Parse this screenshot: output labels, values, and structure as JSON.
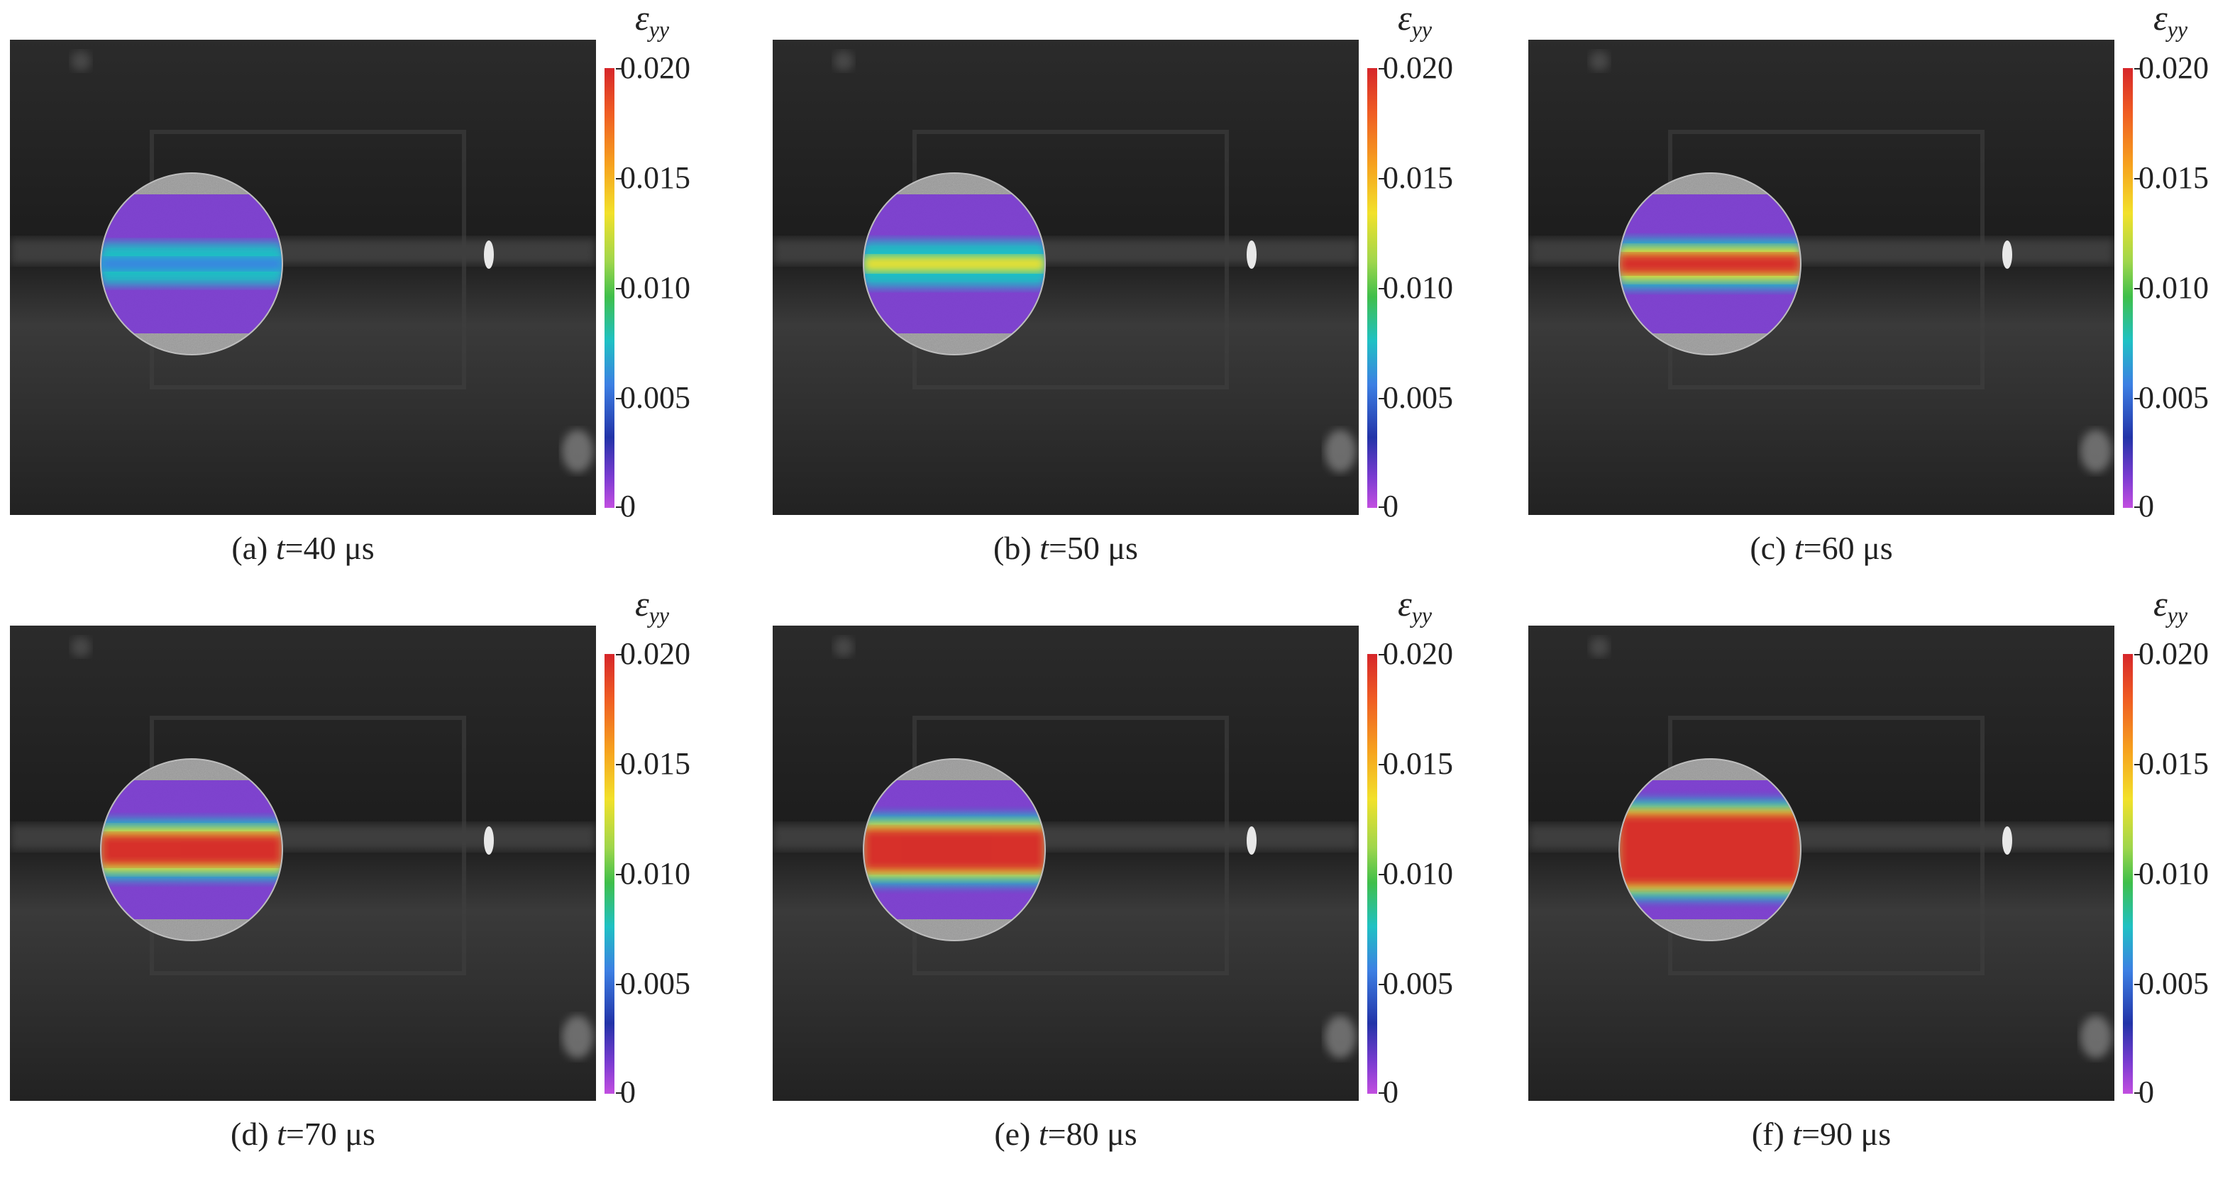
{
  "colorbar": {
    "symbol": "ε",
    "subscript": "yy",
    "ticks": [
      "0.020",
      "0.015",
      "0.010",
      "0.005",
      "0"
    ],
    "colors": [
      "#d6262a",
      "#f2e12a",
      "#3fbf4a",
      "#1fc1c4",
      "#3c7fe3",
      "#7b3bd1"
    ]
  },
  "panels": [
    {
      "label": "(a) ",
      "t_symbol": "t",
      "value": "=40 μs",
      "band_level": 0.35,
      "band_width": 0.1
    },
    {
      "label": "(b) ",
      "t_symbol": "t",
      "value": "=50 μs",
      "band_level": 0.8,
      "band_width": 0.12
    },
    {
      "label": "(c) ",
      "t_symbol": "t",
      "value": "=60 μs",
      "band_level": 0.95,
      "band_width": 0.14
    },
    {
      "label": "(d) ",
      "t_symbol": "t",
      "value": "=70 μs",
      "band_level": 1.0,
      "band_width": 0.2
    },
    {
      "label": "(e) ",
      "t_symbol": "t",
      "value": "=80 μs",
      "band_level": 1.0,
      "band_width": 0.26
    },
    {
      "label": "(f) ",
      "t_symbol": "t",
      "value": "=90 μs",
      "band_level": 1.0,
      "band_width": 0.42
    }
  ]
}
